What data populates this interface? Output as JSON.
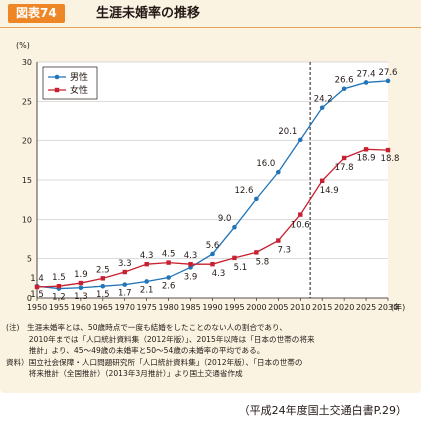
{
  "header": {
    "figure_label": "図表74",
    "title": "生涯未婚率の推移"
  },
  "chart_data": {
    "type": "line",
    "title": "生涯未婚率の推移",
    "ylabel": "(%)",
    "x_unit": "(年)",
    "ylim": [
      0,
      30
    ],
    "yticks": [
      0,
      5,
      10,
      15,
      20,
      25,
      30
    ],
    "x": [
      1950,
      1955,
      1960,
      1965,
      1970,
      1975,
      1980,
      1985,
      1990,
      1995,
      2000,
      2005,
      2010,
      2015,
      2020,
      2025,
      2030
    ],
    "projection_start_year": 2010,
    "legend_placement": "top-left",
    "series": [
      {
        "name": "男性",
        "color": "#2174b8",
        "marker": "circle",
        "values": [
          1.5,
          1.2,
          1.3,
          1.5,
          1.7,
          2.1,
          2.6,
          3.9,
          5.6,
          9.0,
          12.6,
          16.0,
          20.1,
          24.2,
          26.6,
          27.4,
          27.6
        ]
      },
      {
        "name": "女性",
        "color": "#c8202f",
        "marker": "square",
        "values": [
          1.4,
          1.5,
          1.9,
          2.5,
          3.3,
          4.3,
          4.5,
          4.3,
          4.3,
          5.1,
          5.8,
          7.3,
          10.6,
          14.9,
          17.8,
          18.9,
          18.8
        ]
      }
    ]
  },
  "notes": [
    "(注)　生涯未婚率とは、50歳時点で一度も結婚をしたことのない人の割合であり、",
    "　　　2010年までは「人口統計資料集（2012年版）」、2015年以降は「日本の世帯の将来",
    "　　　推計」より、45～49歳の未婚率と50～54歳の未婚率の平均である。",
    "資料）国立社会保障・人口問題研究所「人口統計資料集」（2012年版）、「日本の世帯の",
    "　　　将来推計（全国推計）（2013年3月推計）」より国土交通省作成"
  ],
  "source": "（平成24年度国土交通白書P.29）"
}
